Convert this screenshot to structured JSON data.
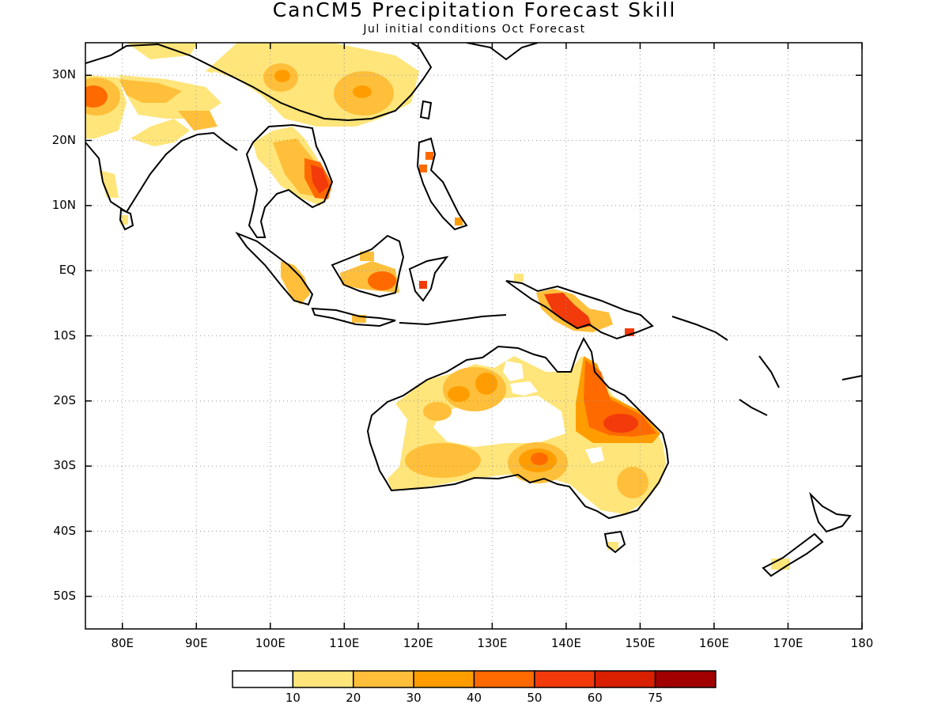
{
  "title": "CanCM5 Precipitation Forecast Skill",
  "subtitle": "Jul initial conditions  Oct Forecast",
  "map": {
    "lon_range": [
      75,
      180
    ],
    "lat_range": [
      -55,
      35
    ],
    "grid": true,
    "y_ticks": [
      {
        "lat": 30,
        "label": "30N"
      },
      {
        "lat": 20,
        "label": "20N"
      },
      {
        "lat": 10,
        "label": "10N"
      },
      {
        "lat": 0,
        "label": "EQ"
      },
      {
        "lat": -10,
        "label": "10S"
      },
      {
        "lat": -20,
        "label": "20S"
      },
      {
        "lat": -30,
        "label": "30S"
      },
      {
        "lat": -40,
        "label": "40S"
      },
      {
        "lat": -50,
        "label": "50S"
      }
    ],
    "x_ticks": [
      {
        "lon": 80,
        "label": "80E"
      },
      {
        "lon": 90,
        "label": "90E"
      },
      {
        "lon": 100,
        "label": "100E"
      },
      {
        "lon": 110,
        "label": "110E"
      },
      {
        "lon": 120,
        "label": "120E"
      },
      {
        "lon": 130,
        "label": "130E"
      },
      {
        "lon": 140,
        "label": "140E"
      },
      {
        "lon": 150,
        "label": "150E"
      },
      {
        "lon": 160,
        "label": "160E"
      },
      {
        "lon": 170,
        "label": "170E"
      },
      {
        "lon": 180,
        "label": "180"
      }
    ]
  },
  "colorbar": {
    "colors": [
      "#ffffff",
      "#ffe57a",
      "#ffbf3a",
      "#ff9d00",
      "#ff6a00",
      "#f23a0a",
      "#d81f00",
      "#a20000"
    ],
    "labels": [
      "10",
      "20",
      "30",
      "40",
      "50",
      "60",
      "75"
    ]
  }
}
